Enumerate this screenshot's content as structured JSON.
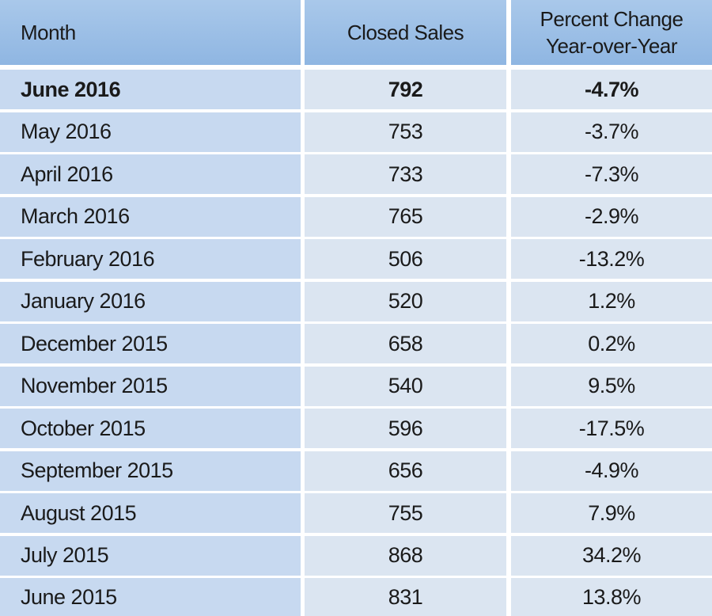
{
  "table": {
    "header": [
      "Month",
      "Closed Sales",
      "Percent Change Year-over-Year"
    ],
    "rows": [
      [
        "June 2016",
        792,
        "-4.7%"
      ],
      [
        "May 2016",
        753,
        "-3.7%"
      ],
      [
        "April 2016",
        733,
        "-7.3%"
      ],
      [
        "March 2016",
        765,
        "-2.9%"
      ],
      [
        "February 2016",
        506,
        "-13.2%"
      ],
      [
        "January 2016",
        520,
        "1.2%"
      ],
      [
        "December 2015",
        658,
        "0.2%"
      ],
      [
        "November 2015",
        540,
        "9.5%"
      ],
      [
        "October 2015",
        596,
        "-17.5%"
      ],
      [
        "September 2015",
        656,
        "-4.9%"
      ],
      [
        "August 2015",
        755,
        "7.9%"
      ],
      [
        "July 2015",
        868,
        "34.2%"
      ],
      [
        "June 2015",
        831,
        "13.8%"
      ]
    ]
  }
}
